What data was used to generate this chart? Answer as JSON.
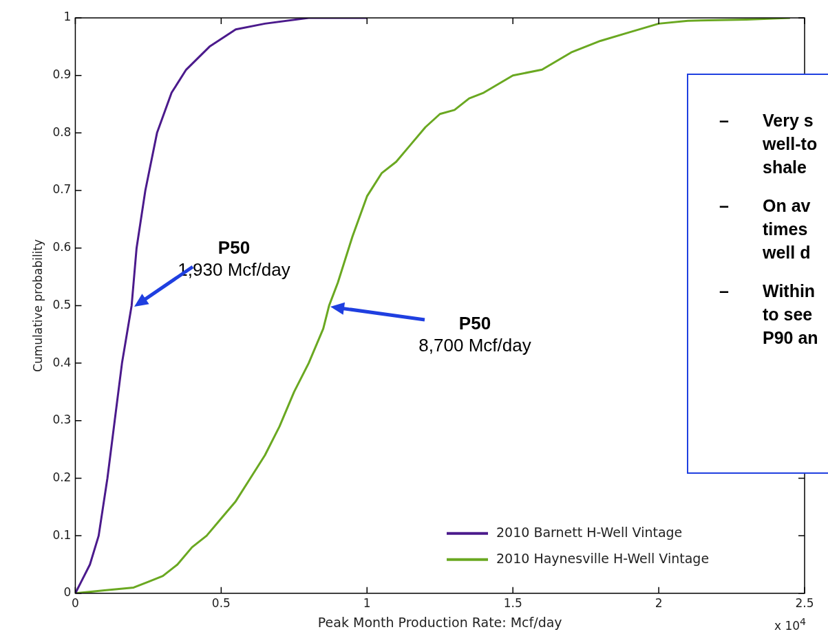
{
  "chart_data": {
    "type": "line",
    "xlabel": "Peak Month Production Rate: Mcf/day",
    "ylabel": "Cumulative probability",
    "xlim": [
      0,
      2.5
    ],
    "xticks": [
      0,
      0.5,
      1,
      1.5,
      2,
      2.5
    ],
    "ylim": [
      0,
      1
    ],
    "yticks": [
      0,
      0.1,
      0.2,
      0.3,
      0.4,
      0.5,
      0.6,
      0.7,
      0.8,
      0.9,
      1
    ],
    "grid": false,
    "legend": "bottom right",
    "marker": "none",
    "line_style": "solid",
    "series": [
      {
        "name": "2010 Barnett H-Well Vintage",
        "color": "#4b1a8c",
        "x": [
          0,
          0.02,
          0.05,
          0.08,
          0.11,
          0.135,
          0.16,
          0.193,
          0.21,
          0.24,
          0.28,
          0.33,
          0.38,
          0.46,
          0.55,
          0.65,
          0.8,
          1.0
        ],
        "values": [
          0,
          0.02,
          0.05,
          0.1,
          0.2,
          0.3,
          0.4,
          0.5,
          0.6,
          0.7,
          0.8,
          0.87,
          0.91,
          0.95,
          0.98,
          0.99,
          1,
          1
        ]
      },
      {
        "name": "2010 Haynesville H-Well Vintage",
        "color": "#6aa821",
        "x": [
          0,
          0.1,
          0.2,
          0.25,
          0.3,
          0.35,
          0.4,
          0.45,
          0.5,
          0.55,
          0.6,
          0.65,
          0.7,
          0.75,
          0.8,
          0.85,
          0.87,
          0.9,
          0.95,
          1.0,
          1.05,
          1.1,
          1.15,
          1.2,
          1.25,
          1.3,
          1.35,
          1.4,
          1.5,
          1.6,
          1.7,
          1.8,
          1.9,
          2.0,
          2.1,
          2.3,
          2.45
        ],
        "values": [
          0,
          0.005,
          0.01,
          0.02,
          0.03,
          0.05,
          0.08,
          0.1,
          0.13,
          0.16,
          0.2,
          0.24,
          0.29,
          0.35,
          0.4,
          0.46,
          0.5,
          0.54,
          0.62,
          0.69,
          0.73,
          0.75,
          0.78,
          0.81,
          0.833,
          0.84,
          0.86,
          0.87,
          0.9,
          0.91,
          0.94,
          0.96,
          0.975,
          0.99,
          0.995,
          0.997,
          1
        ]
      }
    ],
    "annotations": [
      "P50\n1,930 Mcf/day",
      "P50\n8,700 Mcf/day",
      "x 10$^{4}$",
      "–\tVery s\nwell-to\nshale",
      "–\tOn av\ntimes\nwell d",
      "–\tWithin\nto see\nP90 an"
    ]
  }
}
